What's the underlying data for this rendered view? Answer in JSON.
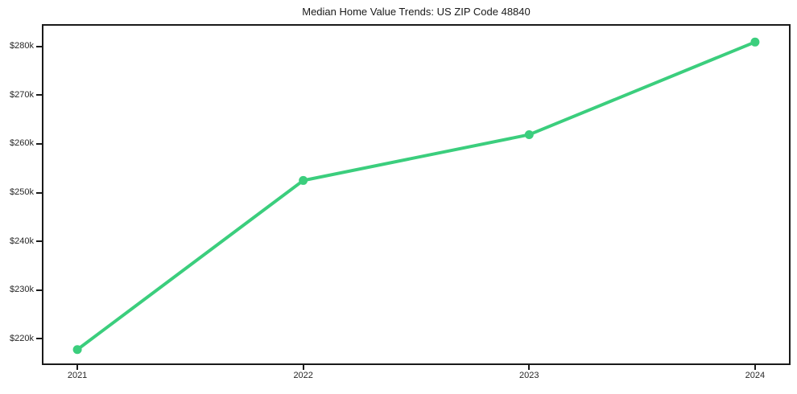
{
  "chart_data": {
    "type": "line",
    "title": "Median Home Value Trends: US ZIP Code 48840",
    "x": [
      2021,
      2022,
      2023,
      2024
    ],
    "x_tick_labels": [
      "2021",
      "2022",
      "2023",
      "2024"
    ],
    "series": [
      {
        "name": "median-home-value",
        "values": [
          217800,
          252500,
          261900,
          280900
        ]
      }
    ],
    "y_ticks": [
      {
        "value": 220000,
        "label": "$220k"
      },
      {
        "value": 230000,
        "label": "$230k"
      },
      {
        "value": 240000,
        "label": "$240k"
      },
      {
        "value": 250000,
        "label": "$250k"
      },
      {
        "value": 260000,
        "label": "$260k"
      },
      {
        "value": 270000,
        "label": "$270k"
      },
      {
        "value": 280000,
        "label": "$280k"
      }
    ],
    "xlim": [
      2020.85,
      2024.15
    ],
    "ylim": [
      214950,
      284250
    ],
    "grid": false,
    "legend_position": "none",
    "line_color": "#3bce7d",
    "marker": "circle",
    "axis_color": "#1a1a1a",
    "tick_label_color": "#262626",
    "background_color": "#ffffff"
  }
}
